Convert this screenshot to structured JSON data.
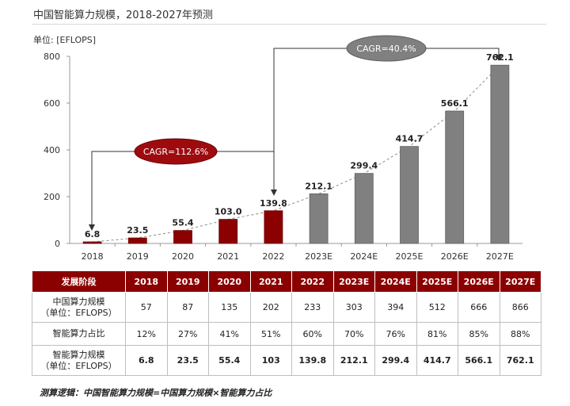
{
  "title": "中国智能算力规模，2018-2027年预测",
  "chart_data": {
    "type": "bar",
    "unit_label": "单位: [EFLOPS]",
    "categories": [
      "2018",
      "2019",
      "2020",
      "2021",
      "2022",
      "2023E",
      "2024E",
      "2025E",
      "2026E",
      "2027E"
    ],
    "values": [
      6.8,
      23.5,
      55.4,
      103.0,
      139.8,
      212.1,
      299.4,
      414.7,
      566.1,
      762.1
    ],
    "value_labels": [
      "6.8",
      "23.5",
      "55.4",
      "103.0",
      "139.8",
      "212.1",
      "299.4",
      "414.7",
      "566.1",
      "762.1"
    ],
    "ylim": [
      0,
      800
    ],
    "yticks": [
      "0",
      "200",
      "400",
      "600",
      "800"
    ],
    "ytick_values": [
      0,
      200,
      400,
      600,
      800
    ],
    "colors": {
      "actual": "#8b0000",
      "forecast": "#808080"
    },
    "cagr_actual": "CAGR=112.6%",
    "cagr_forecast": "CAGR=40.4%"
  },
  "table": {
    "header": [
      "发展阶段",
      "2018",
      "2019",
      "2020",
      "2021",
      "2022",
      "2023E",
      "2024E",
      "2025E",
      "2026E",
      "2027E"
    ],
    "rows": [
      {
        "label_line1": "中国算力规模",
        "label_line2": "（单位：EFLOPS）",
        "cells": [
          "57",
          "87",
          "135",
          "202",
          "233",
          "303",
          "394",
          "512",
          "666",
          "866"
        ]
      },
      {
        "label_line1": "智能算力占比",
        "label_line2": "",
        "cells": [
          "12%",
          "27%",
          "41%",
          "51%",
          "60%",
          "70%",
          "76%",
          "81%",
          "85%",
          "88%"
        ]
      },
      {
        "label_line1": "智能算力规模",
        "label_line2": "（单位：EFLOPS）",
        "cells": [
          "6.8",
          "23.5",
          "55.4",
          "103",
          "139.8",
          "212.1",
          "299.4",
          "414.7",
          "566.1",
          "762.1"
        ]
      }
    ]
  },
  "note": "测算逻辑：中国智能算力规模=中国算力规模×智能算力占比"
}
